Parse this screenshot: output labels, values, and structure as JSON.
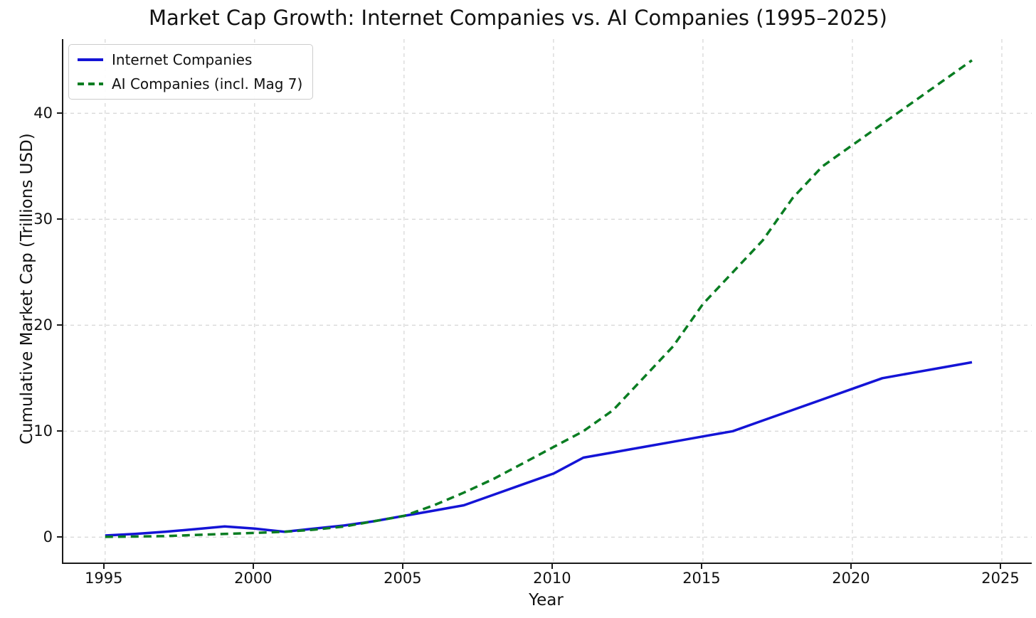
{
  "figure": {
    "title": "Market Cap Growth: Internet Companies vs. AI Companies (1995–2025)",
    "xlabel": "Year",
    "ylabel": "Cumulative Market Cap (Trillions USD)"
  },
  "legend": {
    "items": [
      {
        "label": "Internet Companies",
        "color": "#1414d6",
        "dash": "solid"
      },
      {
        "label": "AI Companies (incl. Mag 7)",
        "color": "#0a7d22",
        "dash": "dashed"
      }
    ]
  },
  "chart_data": {
    "type": "line",
    "title": "Market Cap Growth: Internet Companies vs. AI Companies (1995–2025)",
    "xlabel": "Year",
    "ylabel": "Cumulative Market Cap (Trillions USD)",
    "x": [
      1995,
      1996,
      1997,
      1998,
      1999,
      2000,
      2001,
      2002,
      2003,
      2004,
      2005,
      2006,
      2007,
      2008,
      2009,
      2010,
      2011,
      2012,
      2013,
      2014,
      2015,
      2016,
      2017,
      2018,
      2019,
      2020,
      2021,
      2022,
      2023,
      2024
    ],
    "series": [
      {
        "name": "Internet Companies",
        "color": "#1414d6",
        "style": "solid",
        "values": [
          0.15,
          0.3,
          0.5,
          0.75,
          1.0,
          0.8,
          0.5,
          0.8,
          1.1,
          1.5,
          2.0,
          2.5,
          3.0,
          4.0,
          5.0,
          6.0,
          7.5,
          8.0,
          8.5,
          9.0,
          9.5,
          10.0,
          11.0,
          12.0,
          13.0,
          14.0,
          15.0,
          15.5,
          16.0,
          16.5
        ]
      },
      {
        "name": "AI Companies (incl. Mag 7)",
        "color": "#0a7d22",
        "style": "dashed",
        "values": [
          0.02,
          0.05,
          0.1,
          0.2,
          0.3,
          0.4,
          0.5,
          0.7,
          1.0,
          1.5,
          2.0,
          3.0,
          4.2,
          5.5,
          7.0,
          8.5,
          10.0,
          12.0,
          15.0,
          18.0,
          22.0,
          25.0,
          28.0,
          32.0,
          35.0,
          37.0,
          39.0,
          41.0,
          43.0,
          45.0
        ]
      }
    ],
    "xticks": [
      1995,
      2000,
      2005,
      2010,
      2015,
      2020,
      2025
    ],
    "yticks": [
      0,
      10,
      20,
      30,
      40
    ],
    "xlim": [
      1993.6,
      2026.0
    ],
    "ylim": [
      -2.4,
      47.0
    ],
    "grid": true,
    "grid_color": "#cccccc",
    "legend_position": "upper left"
  }
}
